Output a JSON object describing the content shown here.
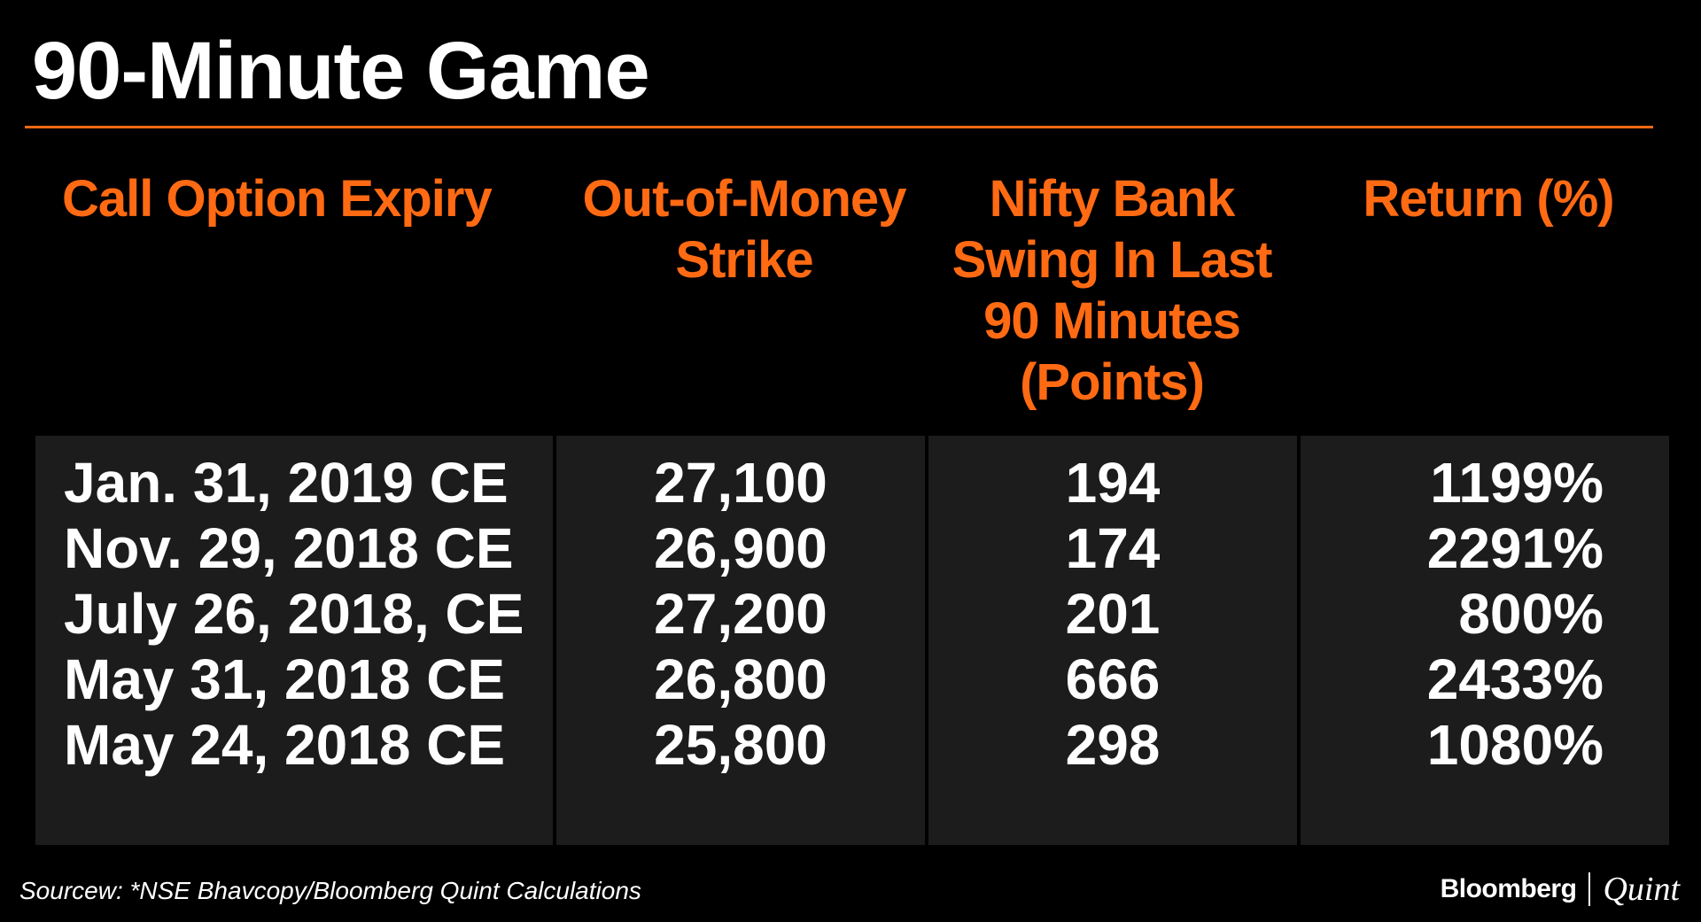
{
  "title": "90-Minute Game",
  "colors": {
    "background": "#000000",
    "accent": "#ff6a13",
    "text": "#ffffff",
    "cell_background": "#1c1c1c"
  },
  "chart_data": {
    "type": "table",
    "title": "90-Minute Game",
    "columns": [
      "Call Option Expiry",
      "Out-of-Money Strike",
      "Nifty Bank Swing In Last 90 Minutes (Points)",
      "Return (%)"
    ],
    "rows": [
      [
        "Jan. 31, 2019 CE",
        "27,100",
        "194",
        "1199%"
      ],
      [
        "Nov. 29, 2018 CE",
        "26,900",
        "174",
        "2291%"
      ],
      [
        "July 26, 2018, CE",
        "27,200",
        "201",
        "800%"
      ],
      [
        "May 31, 2018 CE",
        "26,800",
        "666",
        "2433%"
      ],
      [
        "May 24, 2018 CE",
        "25,800",
        "298",
        "1080%"
      ]
    ]
  },
  "source": "Sourcew: *NSE Bhavcopy/Bloomberg Quint Calculations",
  "logo": {
    "primary": "Bloomberg",
    "secondary": "Quint"
  }
}
